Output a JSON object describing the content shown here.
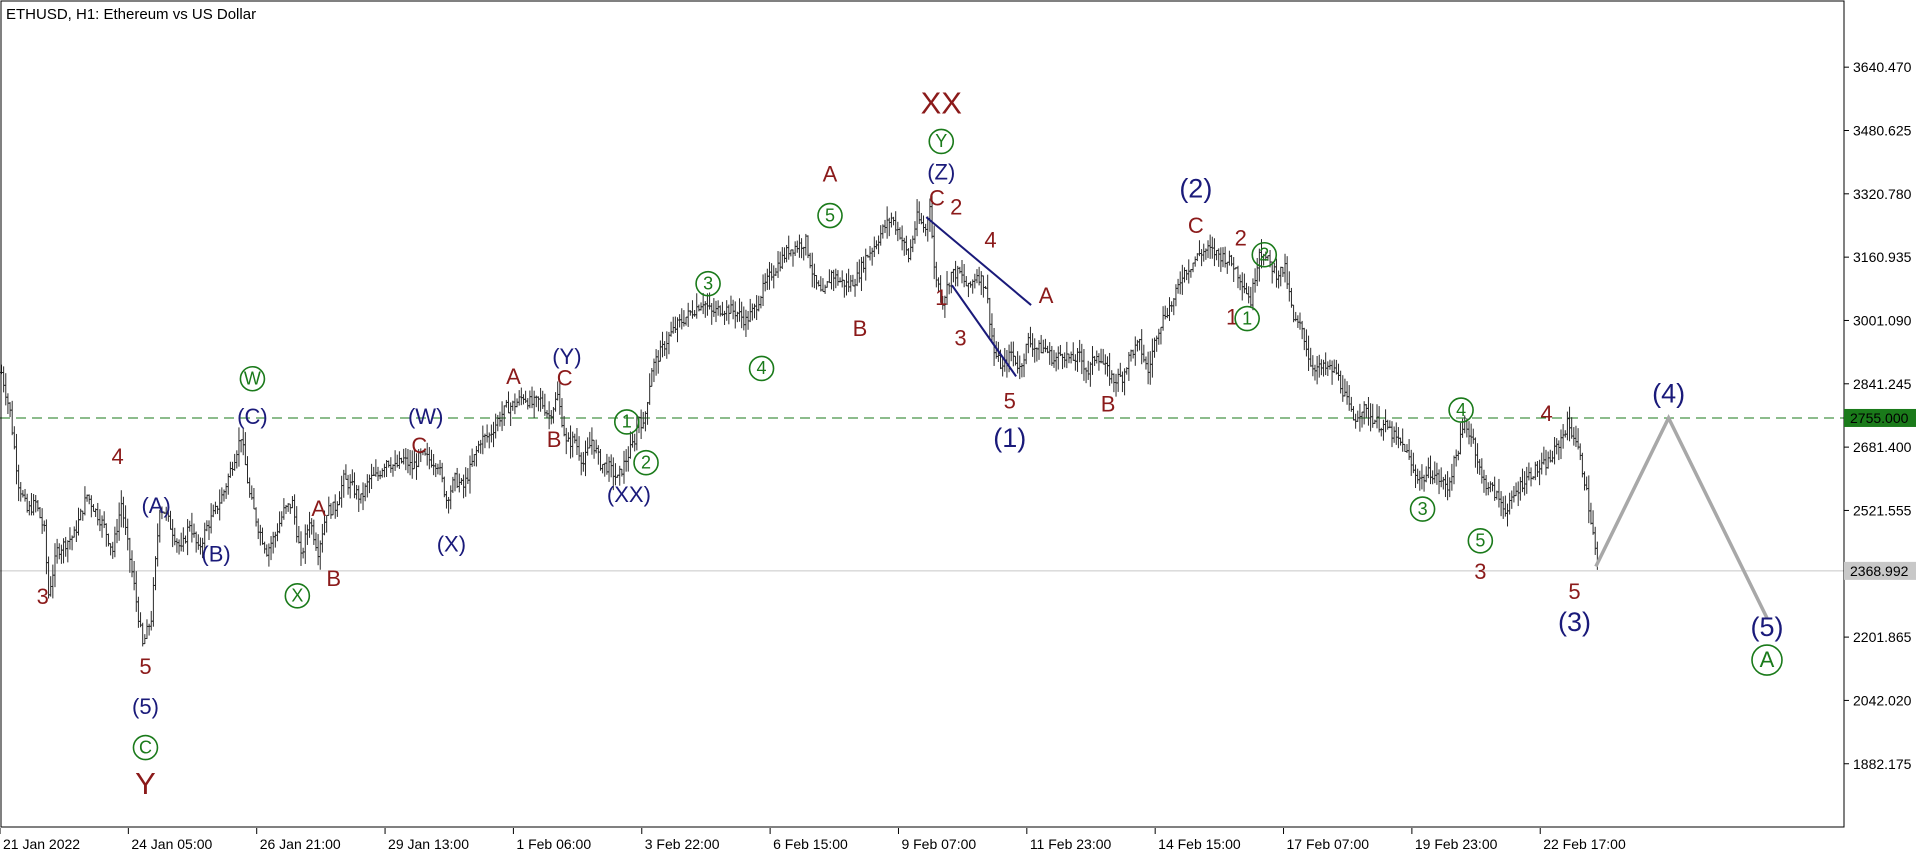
{
  "chart_data": {
    "type": "ohlc",
    "title": "ETHUSD, H1:  Ethereum vs US Dollar",
    "ylim": [
      1720,
      3810
    ],
    "y_ticks": [
      "3640.470",
      "3480.625",
      "3320.780",
      "3160.935",
      "3001.090",
      "2841.245",
      "2681.400",
      "2521.555",
      "2201.865",
      "2042.020",
      "1882.175"
    ],
    "x_ticks": [
      "21 Jan 2022",
      "24 Jan 05:00",
      "26 Jan 21:00",
      "29 Jan 13:00",
      "1 Feb 06:00",
      "3 Feb 22:00",
      "6 Feb 15:00",
      "9 Feb 07:00",
      "11 Feb 23:00",
      "14 Feb 15:00",
      "17 Feb 07:00",
      "19 Feb 23:00",
      "22 Feb 17:00"
    ],
    "x_tick_positions": [
      0,
      60,
      120,
      180,
      240,
      300,
      360,
      420,
      480,
      540,
      600,
      660,
      720
    ],
    "x_max": 862,
    "grid": false,
    "price_lines": [
      {
        "label": "2755.000",
        "value": 2755,
        "style": "dashed",
        "color": "#1a7a1a"
      },
      {
        "label": "2368.992",
        "value": 2369,
        "style": "solid",
        "color": "#c8c8c8"
      }
    ],
    "price_path": [
      [
        0,
        2870
      ],
      [
        4,
        2770
      ],
      [
        8,
        2590
      ],
      [
        12,
        2520
      ],
      [
        16,
        2540
      ],
      [
        20,
        2470
      ],
      [
        22,
        2310
      ],
      [
        26,
        2420
      ],
      [
        30,
        2440
      ],
      [
        34,
        2460
      ],
      [
        40,
        2560
      ],
      [
        44,
        2520
      ],
      [
        48,
        2480
      ],
      [
        52,
        2420
      ],
      [
        56,
        2540
      ],
      [
        58,
        2470
      ],
      [
        62,
        2330
      ],
      [
        66,
        2180
      ],
      [
        70,
        2250
      ],
      [
        74,
        2530
      ],
      [
        76,
        2520
      ],
      [
        80,
        2470
      ],
      [
        84,
        2420
      ],
      [
        88,
        2490
      ],
      [
        92,
        2420
      ],
      [
        96,
        2480
      ],
      [
        100,
        2520
      ],
      [
        104,
        2570
      ],
      [
        108,
        2640
      ],
      [
        112,
        2710
      ],
      [
        116,
        2560
      ],
      [
        120,
        2480
      ],
      [
        124,
        2420
      ],
      [
        128,
        2460
      ],
      [
        132,
        2520
      ],
      [
        136,
        2540
      ],
      [
        140,
        2400
      ],
      [
        144,
        2500
      ],
      [
        148,
        2420
      ],
      [
        152,
        2520
      ],
      [
        156,
        2530
      ],
      [
        160,
        2600
      ],
      [
        164,
        2580
      ],
      [
        168,
        2550
      ],
      [
        172,
        2600
      ],
      [
        176,
        2610
      ],
      [
        180,
        2650
      ],
      [
        184,
        2630
      ],
      [
        188,
        2650
      ],
      [
        192,
        2630
      ],
      [
        196,
        2660
      ],
      [
        200,
        2650
      ],
      [
        204,
        2640
      ],
      [
        208,
        2550
      ],
      [
        212,
        2600
      ],
      [
        216,
        2580
      ],
      [
        220,
        2640
      ],
      [
        224,
        2700
      ],
      [
        228,
        2710
      ],
      [
        232,
        2750
      ],
      [
        236,
        2780
      ],
      [
        240,
        2790
      ],
      [
        244,
        2810
      ],
      [
        248,
        2790
      ],
      [
        252,
        2800
      ],
      [
        256,
        2760
      ],
      [
        260,
        2810
      ],
      [
        264,
        2690
      ],
      [
        268,
        2700
      ],
      [
        272,
        2640
      ],
      [
        276,
        2700
      ],
      [
        280,
        2640
      ],
      [
        284,
        2630
      ],
      [
        288,
        2600
      ],
      [
        292,
        2650
      ],
      [
        296,
        2700
      ],
      [
        298,
        2760
      ],
      [
        300,
        2730
      ],
      [
        304,
        2880
      ],
      [
        308,
        2920
      ],
      [
        312,
        2960
      ],
      [
        316,
        2990
      ],
      [
        320,
        3010
      ],
      [
        324,
        3030
      ],
      [
        328,
        3050
      ],
      [
        332,
        3020
      ],
      [
        336,
        3030
      ],
      [
        340,
        3030
      ],
      [
        344,
        3020
      ],
      [
        348,
        3000
      ],
      [
        352,
        3030
      ],
      [
        356,
        3080
      ],
      [
        360,
        3120
      ],
      [
        364,
        3150
      ],
      [
        368,
        3180
      ],
      [
        372,
        3190
      ],
      [
        376,
        3200
      ],
      [
        380,
        3100
      ],
      [
        384,
        3060
      ],
      [
        388,
        3120
      ],
      [
        392,
        3100
      ],
      [
        396,
        3090
      ],
      [
        400,
        3110
      ],
      [
        404,
        3160
      ],
      [
        408,
        3190
      ],
      [
        412,
        3230
      ],
      [
        416,
        3260
      ],
      [
        420,
        3220
      ],
      [
        424,
        3160
      ],
      [
        428,
        3260
      ],
      [
        432,
        3230
      ],
      [
        434,
        3300
      ],
      [
        436,
        3130
      ],
      [
        440,
        3050
      ],
      [
        444,
        3120
      ],
      [
        448,
        3120
      ],
      [
        452,
        3080
      ],
      [
        456,
        3120
      ],
      [
        460,
        3090
      ],
      [
        464,
        2920
      ],
      [
        468,
        2880
      ],
      [
        472,
        2920
      ],
      [
        476,
        2880
      ],
      [
        480,
        2950
      ],
      [
        484,
        2930
      ],
      [
        488,
        2930
      ],
      [
        492,
        2900
      ],
      [
        496,
        2920
      ],
      [
        500,
        2900
      ],
      [
        504,
        2910
      ],
      [
        508,
        2870
      ],
      [
        512,
        2920
      ],
      [
        516,
        2880
      ],
      [
        520,
        2850
      ],
      [
        524,
        2860
      ],
      [
        528,
        2920
      ],
      [
        532,
        2940
      ],
      [
        536,
        2870
      ],
      [
        540,
        2970
      ],
      [
        544,
        3020
      ],
      [
        548,
        3050
      ],
      [
        552,
        3120
      ],
      [
        556,
        3140
      ],
      [
        560,
        3170
      ],
      [
        564,
        3180
      ],
      [
        568,
        3170
      ],
      [
        572,
        3160
      ],
      [
        576,
        3140
      ],
      [
        580,
        3100
      ],
      [
        584,
        3050
      ],
      [
        588,
        3180
      ],
      [
        592,
        3150
      ],
      [
        596,
        3120
      ],
      [
        600,
        3130
      ],
      [
        604,
        3000
      ],
      [
        608,
        2980
      ],
      [
        612,
        2890
      ],
      [
        616,
        2880
      ],
      [
        620,
        2880
      ],
      [
        624,
        2870
      ],
      [
        628,
        2810
      ],
      [
        632,
        2750
      ],
      [
        636,
        2780
      ],
      [
        640,
        2760
      ],
      [
        644,
        2740
      ],
      [
        648,
        2730
      ],
      [
        652,
        2700
      ],
      [
        656,
        2680
      ],
      [
        660,
        2620
      ],
      [
        664,
        2600
      ],
      [
        668,
        2620
      ],
      [
        672,
        2600
      ],
      [
        676,
        2580
      ],
      [
        680,
        2660
      ],
      [
        684,
        2740
      ],
      [
        688,
        2700
      ],
      [
        692,
        2600
      ],
      [
        696,
        2580
      ],
      [
        700,
        2550
      ],
      [
        704,
        2520
      ],
      [
        708,
        2570
      ],
      [
        712,
        2600
      ],
      [
        716,
        2620
      ],
      [
        720,
        2630
      ],
      [
        724,
        2650
      ],
      [
        728,
        2690
      ],
      [
        732,
        2740
      ],
      [
        736,
        2700
      ],
      [
        740,
        2600
      ],
      [
        744,
        2460
      ],
      [
        746,
        2380
      ]
    ],
    "projection": [
      [
        746,
        2380
      ],
      [
        780,
        2755
      ],
      [
        826,
        2250
      ]
    ],
    "trend_lines": [
      {
        "from": [
          433,
          3262
        ],
        "to": [
          482,
          3040
        ],
        "color": "#1a1a7a"
      },
      {
        "from": [
          445,
          3090
        ],
        "to": [
          475,
          2860
        ],
        "color": "#1a1a7a"
      }
    ],
    "wave_labels": [
      {
        "t": "3",
        "x": 20,
        "v": 2300,
        "color": "#8b1a1a"
      },
      {
        "t": "4",
        "x": 55,
        "v": 2654,
        "color": "#8b1a1a"
      },
      {
        "t": "5",
        "x": 68,
        "v": 2123,
        "color": "#8b1a1a"
      },
      {
        "t": "(5)",
        "x": 68,
        "v": 2023,
        "color": "#1a1a7a"
      },
      {
        "t": "C",
        "x": 68,
        "v": 1923,
        "color": "#1a7a1a",
        "circled": true
      },
      {
        "t": "Y",
        "x": 68,
        "v": 1827,
        "color": "#8b1a1a",
        "big": true
      },
      {
        "t": "(A)",
        "x": 73,
        "v": 2530,
        "color": "#1a1a7a"
      },
      {
        "t": "(B)",
        "x": 101,
        "v": 2407,
        "color": "#1a1a7a"
      },
      {
        "t": "W",
        "x": 118,
        "v": 2854,
        "color": "#1a7a1a",
        "circled": true
      },
      {
        "t": "(C)",
        "x": 118,
        "v": 2755,
        "color": "#1a1a7a"
      },
      {
        "t": "X",
        "x": 139,
        "v": 2306,
        "color": "#1a7a1a",
        "circled": true
      },
      {
        "t": "A",
        "x": 149,
        "v": 2522,
        "color": "#8b1a1a"
      },
      {
        "t": "B",
        "x": 156,
        "v": 2345,
        "color": "#8b1a1a"
      },
      {
        "t": "(W)",
        "x": 199,
        "v": 2755,
        "color": "#1a1a7a"
      },
      {
        "t": "C",
        "x": 196,
        "v": 2681,
        "color": "#8b1a1a"
      },
      {
        "t": "(X)",
        "x": 211,
        "v": 2433,
        "color": "#1a1a7a"
      },
      {
        "t": "A",
        "x": 240,
        "v": 2855,
        "color": "#8b1a1a"
      },
      {
        "t": "(Y)",
        "x": 265,
        "v": 2906,
        "color": "#1a1a7a"
      },
      {
        "t": "C",
        "x": 264,
        "v": 2851,
        "color": "#8b1a1a"
      },
      {
        "t": "B",
        "x": 259,
        "v": 2696,
        "color": "#8b1a1a"
      },
      {
        "t": "1",
        "x": 293,
        "v": 2745,
        "color": "#1a7a1a",
        "circled": true
      },
      {
        "t": "2",
        "x": 302,
        "v": 2642,
        "color": "#1a7a1a",
        "circled": true
      },
      {
        "t": "(XX)",
        "x": 294,
        "v": 2558,
        "color": "#1a1a7a"
      },
      {
        "t": "3",
        "x": 331,
        "v": 3094,
        "color": "#1a7a1a",
        "circled": true
      },
      {
        "t": "4",
        "x": 356,
        "v": 2880,
        "color": "#1a7a1a",
        "circled": true
      },
      {
        "t": "A",
        "x": 388,
        "v": 3366,
        "color": "#8b1a1a"
      },
      {
        "t": "5",
        "x": 388,
        "v": 3266,
        "color": "#1a7a1a",
        "circled": true
      },
      {
        "t": "B",
        "x": 402,
        "v": 2977,
        "color": "#8b1a1a"
      },
      {
        "t": "XX",
        "x": 440,
        "v": 3544,
        "color": "#8b1a1a",
        "big": true
      },
      {
        "t": "Y",
        "x": 440,
        "v": 3453,
        "color": "#1a7a1a",
        "circled": true
      },
      {
        "t": "(Z)",
        "x": 440,
        "v": 3372,
        "color": "#1a1a7a"
      },
      {
        "t": "C",
        "x": 438,
        "v": 3306,
        "color": "#8b1a1a"
      },
      {
        "t": "2",
        "x": 447,
        "v": 3283,
        "color": "#8b1a1a"
      },
      {
        "t": "4",
        "x": 463,
        "v": 3200,
        "color": "#8b1a1a"
      },
      {
        "t": "1",
        "x": 440,
        "v": 3055,
        "color": "#8b1a1a"
      },
      {
        "t": "A",
        "x": 489,
        "v": 3060,
        "color": "#8b1a1a"
      },
      {
        "t": "3",
        "x": 449,
        "v": 2952,
        "color": "#8b1a1a"
      },
      {
        "t": "5",
        "x": 472,
        "v": 2794,
        "color": "#8b1a1a"
      },
      {
        "t": "(1)",
        "x": 472,
        "v": 2700,
        "color": "#1a1a7a",
        "big": true
      },
      {
        "t": "B",
        "x": 518,
        "v": 2786,
        "color": "#8b1a1a"
      },
      {
        "t": "(2)",
        "x": 559,
        "v": 3330,
        "color": "#1a1a7a",
        "big": true
      },
      {
        "t": "C",
        "x": 559,
        "v": 3236,
        "color": "#8b1a1a"
      },
      {
        "t": "2",
        "x": 580,
        "v": 3205,
        "color": "#8b1a1a"
      },
      {
        "t": "2",
        "x": 591,
        "v": 3167,
        "color": "#1a7a1a",
        "circled": true
      },
      {
        "t": "1",
        "x": 576,
        "v": 3006,
        "color": "#8b1a1a"
      },
      {
        "t": "1",
        "x": 583,
        "v": 3006,
        "color": "#1a7a1a",
        "circled": true
      },
      {
        "t": "4",
        "x": 683,
        "v": 2775,
        "color": "#1a7a1a",
        "circled": true
      },
      {
        "t": "4",
        "x": 723,
        "v": 2762,
        "color": "#8b1a1a"
      },
      {
        "t": "3",
        "x": 665,
        "v": 2525,
        "color": "#1a7a1a",
        "circled": true
      },
      {
        "t": "5",
        "x": 692,
        "v": 2445,
        "color": "#1a7a1a",
        "circled": true
      },
      {
        "t": "3",
        "x": 692,
        "v": 2363,
        "color": "#8b1a1a"
      },
      {
        "t": "5",
        "x": 736,
        "v": 2313,
        "color": "#8b1a1a"
      },
      {
        "t": "(3)",
        "x": 736,
        "v": 2235,
        "color": "#1a1a7a",
        "big": true
      },
      {
        "t": "(4)",
        "x": 780,
        "v": 2812,
        "color": "#1a1a7a",
        "big": true
      },
      {
        "t": "(5)",
        "x": 826,
        "v": 2222,
        "color": "#1a1a7a",
        "big": true
      },
      {
        "t": "A",
        "x": 826,
        "v": 2144,
        "color": "#1a7a1a",
        "circled": true,
        "big": true
      }
    ]
  }
}
